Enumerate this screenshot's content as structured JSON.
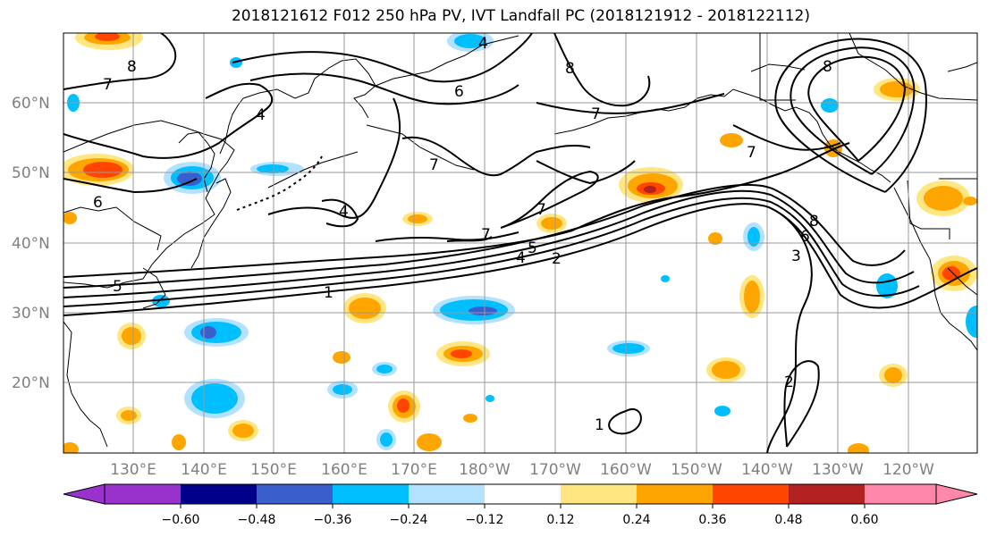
{
  "title": "2018121612 F012 250 hPa PV, IVT Landfall PC (2018121912 - 2018122112)",
  "lat_labels": [
    "60°N",
    "50°N",
    "40°N",
    "30°N",
    "20°N"
  ],
  "lon_labels": [
    "130°E",
    "140°E",
    "150°E",
    "160°E",
    "170°E",
    "180°W",
    "170°W",
    "160°W",
    "150°W",
    "140°W",
    "130°W",
    "120°W"
  ],
  "colorbar": {
    "ticks": [
      "−0.60",
      "−0.48",
      "−0.36",
      "−0.24",
      "−0.12",
      "0.12",
      "0.24",
      "0.36",
      "0.48",
      "0.60"
    ],
    "colors": [
      "#9932cc",
      "#00008b",
      "#3a5fcd",
      "#00bfff",
      "#b2e2ff",
      "#ffffff",
      "#ffe680",
      "#ffa500",
      "#ff4500",
      "#b22222",
      "#ff88aa"
    ]
  },
  "contour_labels": [
    "1",
    "2",
    "3",
    "4",
    "5",
    "6",
    "7",
    "8"
  ],
  "colors": {
    "neg_strong": "#3a5fcd",
    "neg": "#00bfff",
    "neg_light": "#b2e2ff",
    "pos_light": "#ffe680",
    "pos": "#ffa500",
    "pos_strong": "#ff4500",
    "pos_dark": "#b22222"
  }
}
